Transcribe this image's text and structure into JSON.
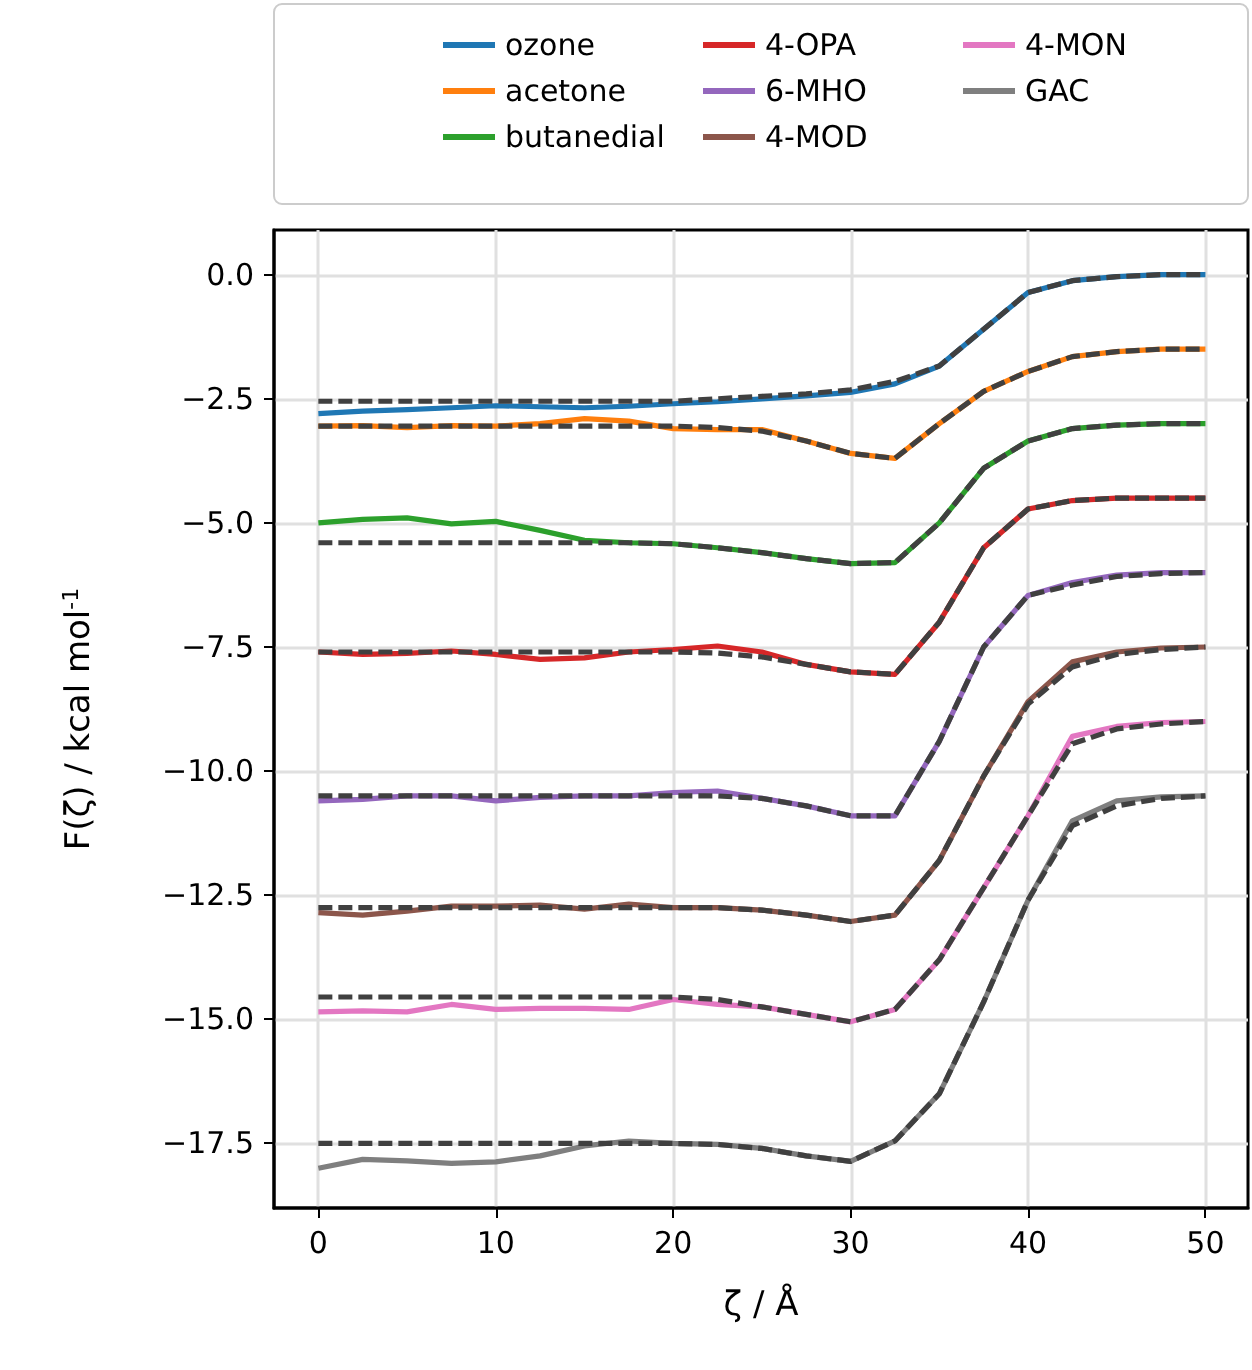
{
  "chart_data": {
    "type": "line",
    "xlabel": "ζ / Å",
    "ylabel": "F(ζ) / kcal mol$^{-1}$",
    "xlim": [
      -2.5,
      52.4
    ],
    "ylim": [
      -18.8,
      0.9
    ],
    "xticks": [
      0,
      10,
      20,
      30,
      40,
      50
    ],
    "yticks": [
      {
        "value": -17.5,
        "label": "−17.5"
      },
      {
        "value": -15,
        "label": "−15.0"
      },
      {
        "value": -12.5,
        "label": "−12.5"
      },
      {
        "value": -10,
        "label": "−10.0"
      },
      {
        "value": -7.5,
        "label": "−7.5"
      },
      {
        "value": -5,
        "label": "−5.0"
      },
      {
        "value": -2.5,
        "label": "−2.5"
      },
      {
        "value": 0,
        "label": "0.0"
      }
    ],
    "grid": true,
    "legend": "top",
    "marker": "none",
    "x": [
      0,
      2.5,
      5,
      7.5,
      10,
      12.5,
      15,
      17.5,
      20,
      22.5,
      25,
      27.5,
      30,
      32.5,
      35,
      37.5,
      40,
      42.5,
      45,
      47.5,
      50
    ],
    "series": [
      {
        "name": "ozone",
        "color": "#1f77b4",
        "values": [
          -2.8,
          -2.75,
          -2.72,
          -2.68,
          -2.64,
          -2.66,
          -2.68,
          -2.65,
          -2.6,
          -2.56,
          -2.5,
          -2.44,
          -2.37,
          -2.2,
          -1.84,
          -1.1,
          -0.36,
          -0.12,
          -0.04,
          0,
          0
        ]
      },
      {
        "name": "acetone",
        "color": "#ff7f0e",
        "values": [
          -3.05,
          -3.04,
          -3.08,
          -3.04,
          -3.05,
          -3.0,
          -2.9,
          -2.95,
          -3.1,
          -3.12,
          -3.12,
          -3.35,
          -3.6,
          -3.7,
          -3.0,
          -2.35,
          -1.95,
          -1.65,
          -1.55,
          -1.5,
          -1.5
        ]
      },
      {
        "name": "butanedial",
        "color": "#2ca02c",
        "values": [
          -5.0,
          -4.93,
          -4.9,
          -5.02,
          -4.97,
          -5.15,
          -5.35,
          -5.4,
          -5.42,
          -5.5,
          -5.6,
          -5.72,
          -5.82,
          -5.8,
          -5.0,
          -3.9,
          -3.35,
          -3.1,
          -3.03,
          -3.0,
          -3.0
        ]
      },
      {
        "name": "4-OPA",
        "color": "#d62728",
        "values": [
          -7.6,
          -7.65,
          -7.63,
          -7.58,
          -7.65,
          -7.75,
          -7.72,
          -7.6,
          -7.55,
          -7.48,
          -7.6,
          -7.85,
          -8.0,
          -8.05,
          -7.0,
          -5.5,
          -4.72,
          -4.55,
          -4.5,
          -4.5,
          -4.5
        ]
      },
      {
        "name": "6-MHO",
        "color": "#9467bd",
        "values": [
          -10.6,
          -10.57,
          -10.5,
          -10.5,
          -10.6,
          -10.53,
          -10.5,
          -10.5,
          -10.43,
          -10.4,
          -10.55,
          -10.7,
          -10.9,
          -10.9,
          -9.4,
          -7.5,
          -6.46,
          -6.2,
          -6.05,
          -6.0,
          -6.0
        ]
      },
      {
        "name": "4-MOD",
        "color": "#8c564b",
        "values": [
          -12.85,
          -12.9,
          -12.82,
          -12.72,
          -12.72,
          -12.7,
          -12.78,
          -12.68,
          -12.75,
          -12.75,
          -12.8,
          -12.9,
          -13.03,
          -12.9,
          -11.8,
          -10.1,
          -8.6,
          -7.8,
          -7.6,
          -7.52,
          -7.5
        ]
      },
      {
        "name": "4-MON",
        "color": "#e377c2",
        "values": [
          -14.85,
          -14.83,
          -14.85,
          -14.7,
          -14.8,
          -14.78,
          -14.78,
          -14.8,
          -14.6,
          -14.7,
          -14.75,
          -14.9,
          -15.05,
          -14.8,
          -13.8,
          -12.35,
          -10.9,
          -9.3,
          -9.1,
          -9.02,
          -9.0
        ]
      },
      {
        "name": "GAC",
        "color": "#7f7f7f",
        "values": [
          -18.0,
          -17.82,
          -17.85,
          -17.9,
          -17.87,
          -17.75,
          -17.55,
          -17.45,
          -17.5,
          -17.52,
          -17.6,
          -17.75,
          -17.86,
          -17.45,
          -16.5,
          -14.65,
          -12.6,
          -11.0,
          -10.6,
          -10.52,
          -10.5
        ]
      },
      {
        "color": "#404040",
        "line_style": "dashed",
        "values": [
          -2.55,
          -2.55,
          -2.55,
          -2.55,
          -2.55,
          -2.55,
          -2.55,
          -2.55,
          -2.55,
          -2.5,
          -2.45,
          -2.4,
          -2.32,
          -2.15,
          -1.84,
          -1.1,
          -0.36,
          -0.12,
          -0.04,
          0,
          0
        ]
      },
      {
        "color": "#404040",
        "line_style": "dashed",
        "values": [
          -3.05,
          -3.05,
          -3.05,
          -3.05,
          -3.05,
          -3.05,
          -3.05,
          -3.05,
          -3.05,
          -3.08,
          -3.15,
          -3.35,
          -3.6,
          -3.7,
          -3.0,
          -2.35,
          -1.95,
          -1.65,
          -1.55,
          -1.5,
          -1.5
        ]
      },
      {
        "color": "#404040",
        "line_style": "dashed",
        "values": [
          -5.4,
          -5.4,
          -5.4,
          -5.4,
          -5.4,
          -5.4,
          -5.4,
          -5.4,
          -5.42,
          -5.5,
          -5.6,
          -5.72,
          -5.82,
          -5.8,
          -5.0,
          -3.9,
          -3.35,
          -3.1,
          -3.03,
          -3.0,
          -3.0
        ]
      },
      {
        "color": "#404040",
        "line_style": "dashed",
        "values": [
          -7.6,
          -7.6,
          -7.6,
          -7.6,
          -7.6,
          -7.6,
          -7.6,
          -7.6,
          -7.6,
          -7.62,
          -7.7,
          -7.85,
          -8.0,
          -8.05,
          -7.0,
          -5.5,
          -4.72,
          -4.55,
          -4.5,
          -4.5,
          -4.5
        ]
      },
      {
        "color": "#404040",
        "line_style": "dashed",
        "values": [
          -10.5,
          -10.5,
          -10.5,
          -10.5,
          -10.5,
          -10.5,
          -10.5,
          -10.5,
          -10.5,
          -10.5,
          -10.55,
          -10.7,
          -10.9,
          -10.9,
          -9.4,
          -7.5,
          -6.46,
          -6.25,
          -6.08,
          -6.02,
          -6.0
        ]
      },
      {
        "color": "#404040",
        "line_style": "dashed",
        "values": [
          -12.75,
          -12.75,
          -12.75,
          -12.75,
          -12.75,
          -12.75,
          -12.75,
          -12.75,
          -12.75,
          -12.75,
          -12.8,
          -12.9,
          -13.03,
          -12.9,
          -11.8,
          -10.1,
          -8.65,
          -7.9,
          -7.65,
          -7.55,
          -7.5
        ]
      },
      {
        "color": "#404040",
        "line_style": "dashed",
        "values": [
          -14.55,
          -14.55,
          -14.55,
          -14.55,
          -14.55,
          -14.55,
          -14.55,
          -14.55,
          -14.55,
          -14.6,
          -14.75,
          -14.9,
          -15.05,
          -14.8,
          -13.8,
          -12.35,
          -10.9,
          -9.45,
          -9.15,
          -9.05,
          -9.0
        ]
      },
      {
        "color": "#404040",
        "line_style": "dashed",
        "values": [
          -17.5,
          -17.5,
          -17.5,
          -17.5,
          -17.5,
          -17.5,
          -17.5,
          -17.5,
          -17.5,
          -17.52,
          -17.6,
          -17.75,
          -17.86,
          -17.45,
          -16.5,
          -14.65,
          -12.6,
          -11.1,
          -10.7,
          -10.55,
          -10.5
        ]
      }
    ]
  }
}
